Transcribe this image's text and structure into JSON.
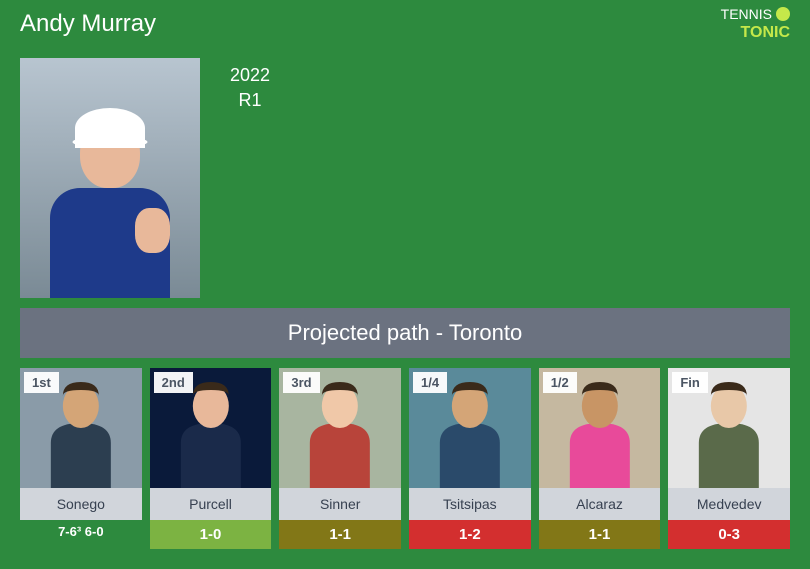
{
  "player_name": "Andy Murray",
  "logo": {
    "line1": "TENNIS",
    "line2": "TONIC"
  },
  "year_section": {
    "year": "2022",
    "round": "R1"
  },
  "projected_path_title": "Projected path - Toronto",
  "score_line": "7-6³ 6-0",
  "opponents": [
    {
      "round": "1st",
      "name": "Sonego",
      "record": "",
      "record_class": "",
      "bg_color": "#8a9ba8",
      "shirt_color": "#2c3e50",
      "skin": "#d4a577"
    },
    {
      "round": "2nd",
      "name": "Purcell",
      "record": "1-0",
      "record_class": "record-green",
      "bg_color": "#0a1a3a",
      "shirt_color": "#1a2a4a",
      "skin": "#e8b89a"
    },
    {
      "round": "3rd",
      "name": "Sinner",
      "record": "1-1",
      "record_class": "record-olive",
      "bg_color": "#a8b5a0",
      "shirt_color": "#b8443a",
      "skin": "#f0c8a8"
    },
    {
      "round": "1/4",
      "name": "Tsitsipas",
      "record": "1-2",
      "record_class": "record-red",
      "bg_color": "#5a8a9a",
      "shirt_color": "#2a4a6a",
      "skin": "#d4a577"
    },
    {
      "round": "1/2",
      "name": "Alcaraz",
      "record": "1-1",
      "record_class": "record-olive",
      "bg_color": "#c5b8a0",
      "shirt_color": "#e84a9a",
      "skin": "#c89565"
    },
    {
      "round": "Fin",
      "name": "Medvedev",
      "record": "0-3",
      "record_class": "record-red",
      "bg_color": "#e5e5e5",
      "shirt_color": "#5a6a4a",
      "skin": "#e8c8a8"
    }
  ]
}
